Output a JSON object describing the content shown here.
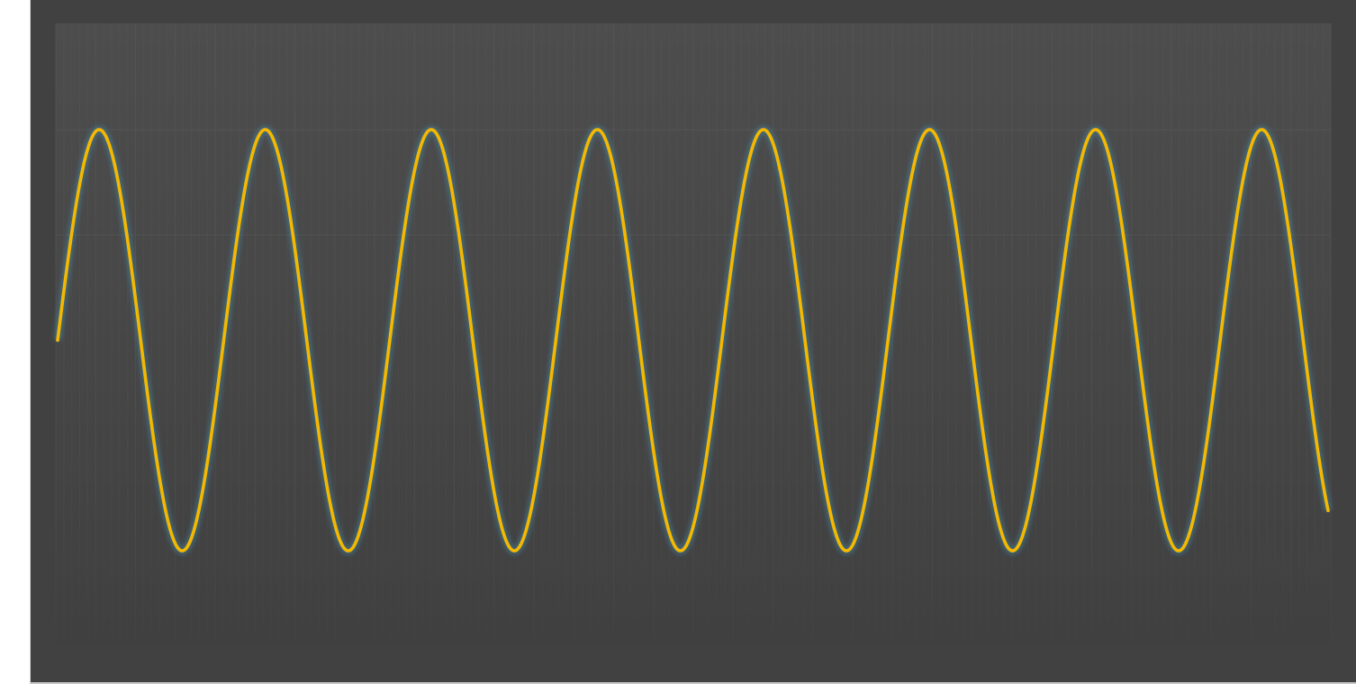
{
  "chart_data": {
    "type": "line",
    "title": "",
    "xlabel": "",
    "ylabel": "",
    "xlim": [
      0,
      7.7
    ],
    "ylim": [
      -1.6,
      1.6
    ],
    "grid": true,
    "legend": "none",
    "series": [
      {
        "cycles": 7.65,
        "amplitude": 1,
        "color": "#f5b800",
        "glow_color": "#3d8fb0"
      }
    ],
    "colors": {
      "background": "#414141",
      "plot_area_top": "#4d4d4d",
      "plot_area_bottom": "#404040",
      "grid": "#575757"
    }
  }
}
